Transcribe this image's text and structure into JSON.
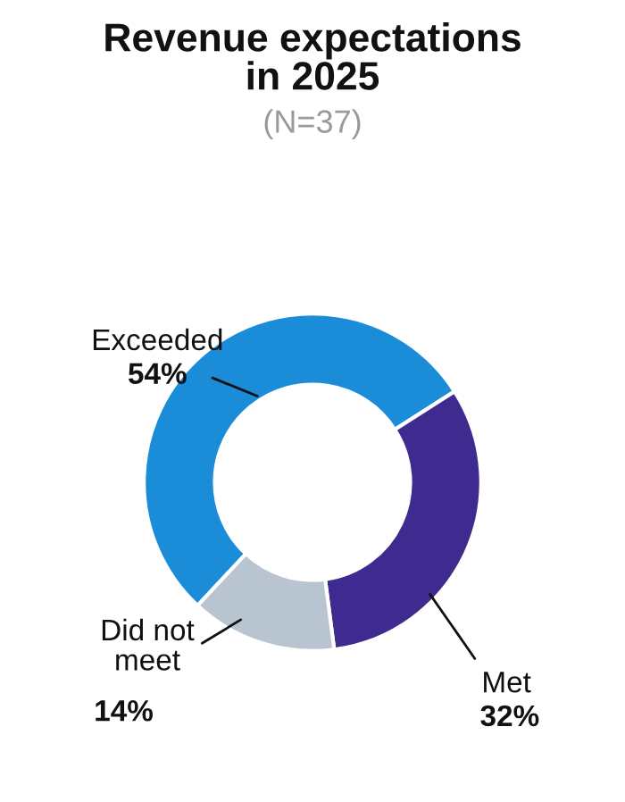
{
  "chart_data": {
    "type": "donut",
    "title": "Revenue expectations\nin 2025",
    "subtitle": "(N=37)",
    "categories": [
      "Exceeded",
      "Met",
      "Did not\nmeet"
    ],
    "values": [
      54,
      32,
      14
    ],
    "value_labels": [
      "54%",
      "32%",
      "14%"
    ],
    "colors": [
      "#1a8cd8",
      "#3f2b8f",
      "#b8c4cf"
    ],
    "legend": false
  }
}
